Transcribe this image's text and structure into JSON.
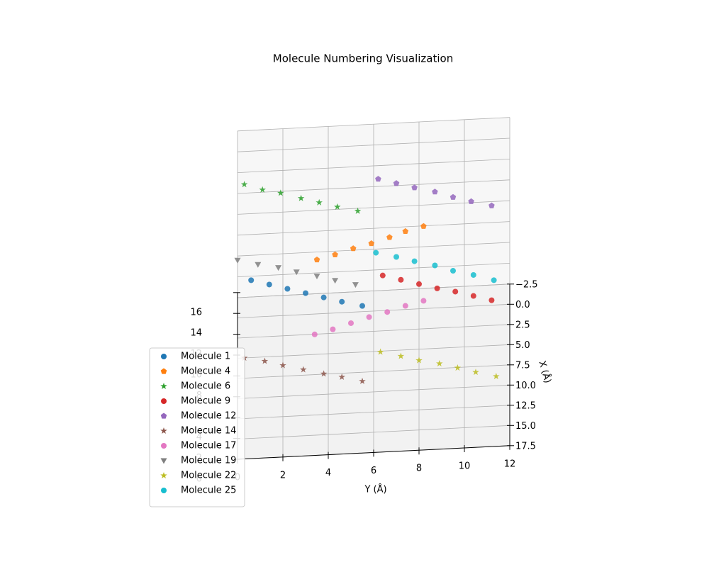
{
  "chart_data": {
    "type": "scatter3d",
    "title": "Molecule Numbering Visualization",
    "xlabel": "X (Å)",
    "ylabel": "Y (Å)",
    "xlim": [
      -2.5,
      17.5
    ],
    "xticks": [
      {
        "value": -2.5,
        "label": "−2.5"
      },
      {
        "value": 0,
        "label": "0.0"
      },
      {
        "value": 2.5,
        "label": "2.5"
      },
      {
        "value": 5,
        "label": "5.0"
      },
      {
        "value": 7.5,
        "label": "7.5"
      },
      {
        "value": 10,
        "label": "10.0"
      },
      {
        "value": 12.5,
        "label": "12.5"
      },
      {
        "value": 15,
        "label": "15.0"
      },
      {
        "value": 17.5,
        "label": "17.5"
      }
    ],
    "ylim": [
      0,
      12
    ],
    "yticks": [
      0,
      2,
      4,
      6,
      8,
      10,
      12
    ],
    "zlim": [
      0,
      16
    ],
    "zticks": [
      0,
      2,
      4,
      6,
      8,
      10,
      12,
      14,
      16
    ],
    "grid": true,
    "legend": "lower left",
    "series": [
      {
        "name": "Molecule 1",
        "color": "#1f77b4",
        "marker": "o",
        "x": [
          2,
          2,
          2,
          2,
          2,
          2,
          2
        ],
        "y": [
          0.6,
          1.4,
          2.2,
          3.0,
          3.8,
          4.6,
          5.5
        ],
        "z": [
          5.1,
          4.6,
          4.1,
          3.6,
          3.1,
          2.6,
          2.1
        ]
      },
      {
        "name": "Molecule 4",
        "color": "#ff7f0e",
        "marker": "p",
        "x": [
          0,
          0,
          0,
          0,
          0,
          0,
          0
        ],
        "y": [
          3.5,
          4.3,
          5.1,
          5.9,
          6.7,
          7.4,
          8.2
        ],
        "z": [
          5.2,
          5.6,
          6.1,
          6.5,
          7.0,
          7.5,
          7.9
        ]
      },
      {
        "name": "Molecule 6",
        "color": "#2ca02c",
        "marker": "*",
        "x": [
          -1,
          -1,
          -1,
          -1,
          -1,
          -1,
          -1
        ],
        "y": [
          0.3,
          1.1,
          1.9,
          2.8,
          3.6,
          4.4,
          5.3
        ],
        "z": [
          12.0,
          11.4,
          11.0,
          10.4,
          9.9,
          9.4,
          8.9
        ]
      },
      {
        "name": "Molecule 9",
        "color": "#d62728",
        "marker": "o",
        "x": [
          3,
          3,
          3,
          3,
          3,
          3,
          3
        ],
        "y": [
          6.4,
          7.2,
          8.0,
          8.8,
          9.6,
          10.4,
          11.2
        ],
        "z": [
          5.7,
          5.2,
          4.7,
          4.2,
          3.8,
          3.3,
          2.8
        ]
      },
      {
        "name": "Molecule 12",
        "color": "#9467bd",
        "marker": "p",
        "x": [
          -2,
          -2,
          -2,
          -2,
          -2,
          -2,
          -2
        ],
        "y": [
          6.2,
          7.0,
          7.8,
          8.7,
          9.5,
          10.3,
          11.2
        ],
        "z": [
          11.1,
          10.6,
          10.1,
          9.6,
          9.0,
          8.5,
          8.0
        ]
      },
      {
        "name": "Molecule 14",
        "color": "#8c564b",
        "marker": "*",
        "x": [
          9,
          9,
          9,
          9,
          9,
          9,
          9
        ],
        "y": [
          0.3,
          1.2,
          2.0,
          2.9,
          3.8,
          4.6,
          5.5
        ],
        "z": [
          3.1,
          2.7,
          2.2,
          1.7,
          1.2,
          0.8,
          0.3
        ]
      },
      {
        "name": "Molecule 17",
        "color": "#e377c2",
        "marker": "o",
        "x": [
          6,
          6,
          6,
          6,
          6,
          6,
          6
        ],
        "y": [
          3.4,
          4.2,
          5.0,
          5.8,
          6.6,
          7.4,
          8.2
        ],
        "z": [
          2.7,
          3.1,
          3.6,
          4.1,
          4.5,
          5.0,
          5.4
        ]
      },
      {
        "name": "Molecule 19",
        "color": "#7f7f7f",
        "marker": "v",
        "x": [
          1,
          1,
          1,
          1,
          1,
          1,
          1
        ],
        "y": [
          0.0,
          0.9,
          1.8,
          2.6,
          3.5,
          4.3,
          5.2
        ],
        "z": [
          6.3,
          5.8,
          5.4,
          4.9,
          4.4,
          3.9,
          3.4
        ]
      },
      {
        "name": "Molecule 22",
        "color": "#bcbd22",
        "marker": "*",
        "x": [
          10,
          10,
          10,
          10,
          10,
          10,
          10
        ],
        "y": [
          6.3,
          7.2,
          8.0,
          8.9,
          9.7,
          10.5,
          11.4
        ],
        "z": [
          3.8,
          3.3,
          2.8,
          2.4,
          1.9,
          1.4,
          0.9
        ]
      },
      {
        "name": "Molecule 25",
        "color": "#17becf",
        "marker": "o",
        "x": [
          -0.5,
          -0.5,
          -0.5,
          -0.5,
          -0.5,
          -0.5,
          -0.5
        ],
        "y": [
          6.1,
          7.0,
          7.8,
          8.7,
          9.5,
          10.4,
          11.3
        ],
        "z": [
          5.2,
          4.7,
          4.2,
          3.7,
          3.1,
          2.6,
          2.0
        ]
      }
    ]
  }
}
